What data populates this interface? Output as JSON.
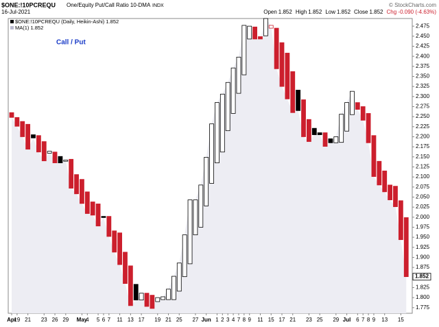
{
  "chart_data": {
    "type": "candlestick",
    "title": "$ONE:!10PCREQU",
    "subtitle": "One/Equity Put/Call Ratio 10-DMA",
    "exchange": "INDX",
    "date": "16-Jul-2021",
    "source": "© StockCharts.com",
    "quote": [
      {
        "label": "Open",
        "value": "1.852"
      },
      {
        "label": "High",
        "value": "1.852"
      },
      {
        "label": "Low",
        "value": "1.852"
      },
      {
        "label": "Close",
        "value": "1.852"
      }
    ],
    "change": "Chg -0.090 (-4.63%)",
    "change_color": "#cc1f2d",
    "legend": [
      "$ONE:!10PCREQU (Daily, Heikin-Ashi) 1.852",
      "MA(1) 1.852"
    ],
    "annotation": "Call / Put",
    "annotation_color": "#1a3cc8",
    "last_label": "1.852",
    "area_color": "#ededf3",
    "categories": [
      "Apr",
      "19",
      null,
      "21",
      null,
      null,
      "23",
      null,
      "26",
      null,
      "29",
      null,
      null,
      "May",
      "4",
      null,
      "5",
      "6",
      "7",
      null,
      "11",
      null,
      "13",
      null,
      "17",
      null,
      null,
      "19",
      null,
      "21",
      null,
      "25",
      null,
      null,
      "27",
      null,
      "Jun",
      null,
      "1",
      "2",
      "3",
      "4",
      "7",
      "8",
      "9",
      null,
      "11",
      null,
      "15",
      null,
      "17",
      null,
      "21",
      null,
      null,
      "23",
      null,
      "25",
      null,
      null,
      "29",
      null,
      "Jul",
      null,
      "6",
      "7",
      "8",
      "9",
      null,
      "13",
      null,
      null,
      "15",
      null
    ],
    "open": [
      2.26,
      2.248,
      2.238,
      2.231,
      2.205,
      2.203,
      2.188,
      2.159,
      2.162,
      2.151,
      2.139,
      2.144,
      2.106,
      2.094,
      2.063,
      2.038,
      2.033,
      2.002,
      2.002,
      1.966,
      1.961,
      1.913,
      1.879,
      1.833,
      1.794,
      1.811,
      1.806,
      1.79,
      1.795,
      1.795,
      1.795,
      1.816,
      1.852,
      1.884,
      1.956,
      1.975,
      2.028,
      2.084,
      2.135,
      2.162,
      2.215,
      2.258,
      2.308,
      2.354,
      2.443,
      2.473,
      2.449,
      2.451,
      2.47,
      2.47,
      2.434,
      2.408,
      2.362,
      2.316,
      2.292,
      2.243,
      2.221,
      2.21,
      2.21,
      2.195,
      2.185,
      2.186,
      2.214,
      2.255,
      2.285,
      2.275,
      2.258,
      2.203,
      2.139,
      2.115,
      2.08,
      2.077,
      2.041,
      1.999
    ],
    "close": [
      2.248,
      2.226,
      2.2,
      2.169,
      2.197,
      2.162,
      2.14,
      2.164,
      2.135,
      2.135,
      2.142,
      2.072,
      2.058,
      2.034,
      2.009,
      2.005,
      1.978,
      1.999,
      1.952,
      1.913,
      1.882,
      1.835,
      1.78,
      1.794,
      1.811,
      1.778,
      1.773,
      1.8,
      1.802,
      1.821,
      1.853,
      1.886,
      1.956,
      2.043,
      2.043,
      2.08,
      2.149,
      2.232,
      2.285,
      2.306,
      2.335,
      2.371,
      2.398,
      2.477,
      2.475,
      2.443,
      2.443,
      2.494,
      2.477,
      2.369,
      2.325,
      2.294,
      2.26,
      2.265,
      2.2,
      2.188,
      2.205,
      2.205,
      2.176,
      2.185,
      2.2,
      2.256,
      2.285,
      2.313,
      2.268,
      2.241,
      2.185,
      2.101,
      2.08,
      2.063,
      2.043,
      2.026,
      1.944,
      1.852
    ],
    "candle_colors": [
      "#cc1f2d",
      "#cc1f2d",
      "#cc1f2d",
      "#cc1f2d",
      "#000000",
      "#cc1f2d",
      "#cc1f2d",
      "#000000",
      "#cc1f2d",
      "#000000",
      "#000000",
      "#cc1f2d",
      "#cc1f2d",
      "#cc1f2d",
      "#cc1f2d",
      "#cc1f2d",
      "#cc1f2d",
      "#000000",
      "#cc1f2d",
      "#cc1f2d",
      "#cc1f2d",
      "#cc1f2d",
      "#cc1f2d",
      "#000000",
      "#000000",
      "#cc1f2d",
      "#cc1f2d",
      "#000000",
      "#000000",
      "#000000",
      "#000000",
      "#000000",
      "#000000",
      "#000000",
      "#000000",
      "#000000",
      "#000000",
      "#000000",
      "#000000",
      "#000000",
      "#000000",
      "#000000",
      "#000000",
      "#000000",
      "#000000",
      "#cc1f2d",
      "#cc1f2d",
      "#000000",
      "#cc1f2d",
      "#cc1f2d",
      "#cc1f2d",
      "#cc1f2d",
      "#cc1f2d",
      "#000000",
      "#cc1f2d",
      "#cc1f2d",
      "#000000",
      "#000000",
      "#cc1f2d",
      "#000000",
      "#000000",
      "#000000",
      "#000000",
      "#000000",
      "#cc1f2d",
      "#cc1f2d",
      "#cc1f2d",
      "#cc1f2d",
      "#cc1f2d",
      "#cc1f2d",
      "#cc1f2d",
      "#cc1f2d",
      "#cc1f2d",
      "#cc1f2d"
    ],
    "ylim": [
      1.761,
      2.494
    ],
    "yticks": [
      1.775,
      {
        "value": 1.8,
        "label": "1.800"
      },
      1.825,
      {
        "value": 1.85,
        "label": "1.850"
      },
      1.875,
      {
        "value": 1.9,
        "label": "1.900"
      },
      1.925,
      {
        "value": 1.95,
        "label": "1.950"
      },
      1.975,
      {
        "value": 2,
        "label": "2.000"
      },
      2.025,
      {
        "value": 2.05,
        "label": "2.050"
      },
      2.075,
      {
        "value": 2.1,
        "label": "2.100"
      },
      2.125,
      {
        "value": 2.15,
        "label": "2.150"
      },
      2.175,
      {
        "value": 2.2,
        "label": "2.200"
      },
      2.225,
      {
        "value": 2.25,
        "label": "2.250"
      },
      2.275,
      {
        "value": 2.3,
        "label": "2.300"
      },
      2.325,
      {
        "value": 2.35,
        "label": "2.350"
      },
      2.375,
      {
        "value": 2.4,
        "label": "2.400"
      },
      2.425,
      {
        "value": 2.45,
        "label": "2.450"
      },
      2.475
    ]
  }
}
